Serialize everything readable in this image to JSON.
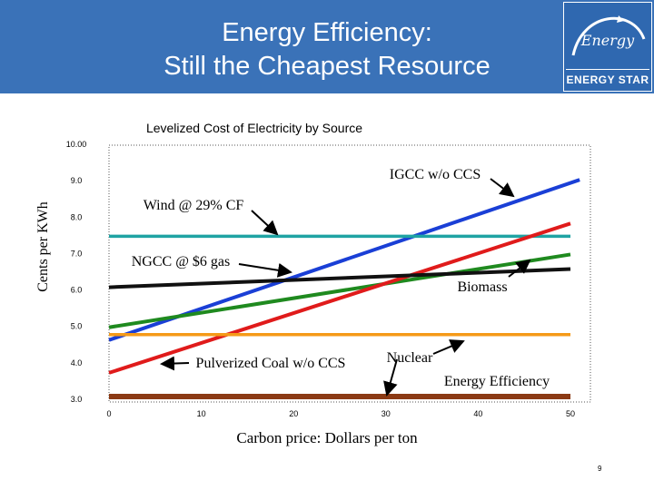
{
  "header": {
    "title_line1": "Energy Efficiency:",
    "title_line2": "Still the Cheapest Resource",
    "logo_script": "Energy",
    "logo_name": "ENERGY STAR"
  },
  "page_number": "9",
  "colors": {
    "header_bg": "#3a72b8",
    "igcc": "#1a3fd6",
    "wind": "#1fa3a3",
    "ngcc": "#1f8a1f",
    "coal": "#e01b1b",
    "biomass": "#111111",
    "nuclear": "#f59a18",
    "efficiency": "#8b3a14"
  },
  "chart_data": {
    "type": "line",
    "title": "Levelized Cost of Electricity by Source",
    "xlabel": "Carbon price: Dollars per ton",
    "ylabel": "Cents per KWh",
    "x_ticks": [
      "0",
      "10",
      "20",
      "30",
      "40",
      "50"
    ],
    "y_ticks": [
      "10.00",
      "9.0",
      "8.0",
      "7.0",
      "6.0",
      "5.0",
      "4.0",
      "3.0"
    ],
    "xlim": [
      0,
      50
    ],
    "ylim": [
      3.0,
      10.0
    ],
    "series": [
      {
        "name": "IGCC w/o CCS",
        "color": "#1a3fd6",
        "x": [
          0,
          51
        ],
        "y": [
          4.6,
          9.0
        ]
      },
      {
        "name": "Wind @ 29% CF",
        "color": "#1fa3a3",
        "x": [
          0,
          50
        ],
        "y": [
          7.45,
          7.45
        ]
      },
      {
        "name": "NGCC @ $6 gas",
        "color": "#1f8a1f",
        "x": [
          0,
          50
        ],
        "y": [
          4.95,
          6.95
        ]
      },
      {
        "name": "Pulverized Coal w/o CCS",
        "color": "#e01b1b",
        "x": [
          0,
          50
        ],
        "y": [
          3.7,
          7.8
        ]
      },
      {
        "name": "Biomass",
        "color": "#111111",
        "x": [
          0,
          50
        ],
        "y": [
          6.05,
          6.55
        ]
      },
      {
        "name": "Nuclear",
        "color": "#f59a18",
        "x": [
          0,
          50
        ],
        "y": [
          4.75,
          4.75
        ]
      },
      {
        "name": "Energy Efficiency",
        "color": "#8b3a14",
        "x": [
          0,
          50
        ],
        "y": [
          3.05,
          3.05
        ]
      }
    ],
    "annotations": [
      {
        "text": "IGCC w/o CCS",
        "series": "IGCC w/o CCS"
      },
      {
        "text": "Wind @ 29% CF",
        "series": "Wind @ 29% CF"
      },
      {
        "text": "NGCC @ $6 gas",
        "series": "NGCC @ $6 gas"
      },
      {
        "text": "Biomass",
        "series": "Biomass"
      },
      {
        "text": "Pulverized Coal w/o CCS",
        "series": "Pulverized Coal w/o CCS"
      },
      {
        "text": "Nuclear",
        "series": "Nuclear"
      },
      {
        "text": "Energy Efficiency",
        "series": "Energy Efficiency"
      }
    ]
  }
}
